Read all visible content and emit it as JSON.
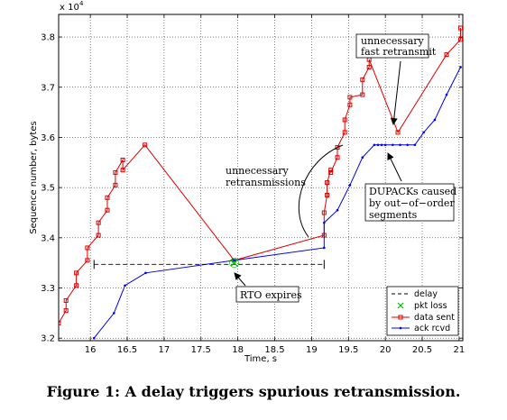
{
  "chart_data": {
    "type": "line",
    "xlabel": "Time, s",
    "ylabel": "Sequence number, bytes",
    "y_multiplier": "x 10",
    "y_exponent": "4",
    "xlim": [
      15.57,
      21.05
    ],
    "ylim": [
      3.195,
      3.845
    ],
    "x_ticks": [
      16,
      16.5,
      17,
      17.5,
      18,
      18.5,
      19,
      19.5,
      20,
      20.5,
      21
    ],
    "x_tick_labels": [
      "16",
      "16.5",
      "17",
      "17.5",
      "18",
      "18.5",
      "19",
      "19.5",
      "20",
      "20.5",
      "21"
    ],
    "y_ticks": [
      3.2,
      3.3,
      3.4,
      3.5,
      3.6,
      3.7,
      3.8
    ],
    "y_tick_labels": [
      "3.2",
      "3.3",
      "3.4",
      "3.5",
      "3.6",
      "3.7",
      "3.8"
    ],
    "grid": true,
    "legend_position": "bottom-right",
    "series": [
      {
        "name": "data sent",
        "color": "#dd0000",
        "marker": "square",
        "x": [
          15.57,
          15.67,
          15.67,
          15.81,
          15.81,
          15.96,
          15.96,
          16.11,
          16.11,
          16.23,
          16.23,
          16.34,
          16.34,
          16.44,
          16.44,
          16.74,
          17.95,
          19.17,
          19.17,
          19.21,
          19.21,
          19.26,
          19.26,
          19.35,
          19.35,
          19.45,
          19.45,
          19.52,
          19.52,
          19.69,
          19.69,
          19.78,
          19.78,
          20.17,
          20.83,
          21.02,
          21.02
        ],
        "y": [
          3.23,
          3.255,
          3.275,
          3.305,
          3.33,
          3.355,
          3.38,
          3.405,
          3.43,
          3.455,
          3.48,
          3.505,
          3.53,
          3.555,
          3.535,
          3.585,
          3.355,
          3.405,
          3.45,
          3.485,
          3.51,
          3.535,
          3.53,
          3.56,
          3.58,
          3.61,
          3.635,
          3.665,
          3.68,
          3.685,
          3.715,
          3.74,
          3.755,
          3.61,
          3.765,
          3.795,
          3.818
        ]
      },
      {
        "name": "ack rcvd",
        "color": "#0000ee",
        "marker": "dot",
        "x": [
          16.05,
          16.32,
          16.47,
          16.75,
          17.95,
          19.17,
          19.17,
          19.35,
          19.52,
          19.69,
          19.85,
          19.9,
          19.95,
          20.0,
          20.1,
          20.2,
          20.3,
          20.4,
          20.52,
          20.67,
          20.83,
          21.02
        ],
        "y": [
          3.2,
          3.25,
          3.305,
          3.33,
          3.355,
          3.38,
          3.43,
          3.455,
          3.505,
          3.56,
          3.585,
          3.585,
          3.585,
          3.585,
          3.585,
          3.585,
          3.585,
          3.585,
          3.61,
          3.635,
          3.685,
          3.74
        ]
      },
      {
        "name": "delay",
        "color": "#000000",
        "style": "dashed",
        "x": [
          16.05,
          19.17
        ],
        "y": [
          3.347,
          3.347
        ]
      },
      {
        "name": "pkt loss",
        "color": "#00bb00",
        "marker": "x",
        "x": [
          17.95
        ],
        "y": [
          3.35
        ]
      }
    ],
    "annotations": [
      {
        "lines": [
          "unnecessary",
          "fast retransmit"
        ]
      },
      {
        "lines": [
          "unnecessary",
          "retransmissions"
        ]
      },
      {
        "lines": [
          "DUPACKs caused",
          "by out−of−order",
          "segments"
        ]
      },
      {
        "lines": [
          "RTO expires"
        ]
      }
    ]
  },
  "caption": "Figure 1:  A delay triggers spurious retransmission."
}
